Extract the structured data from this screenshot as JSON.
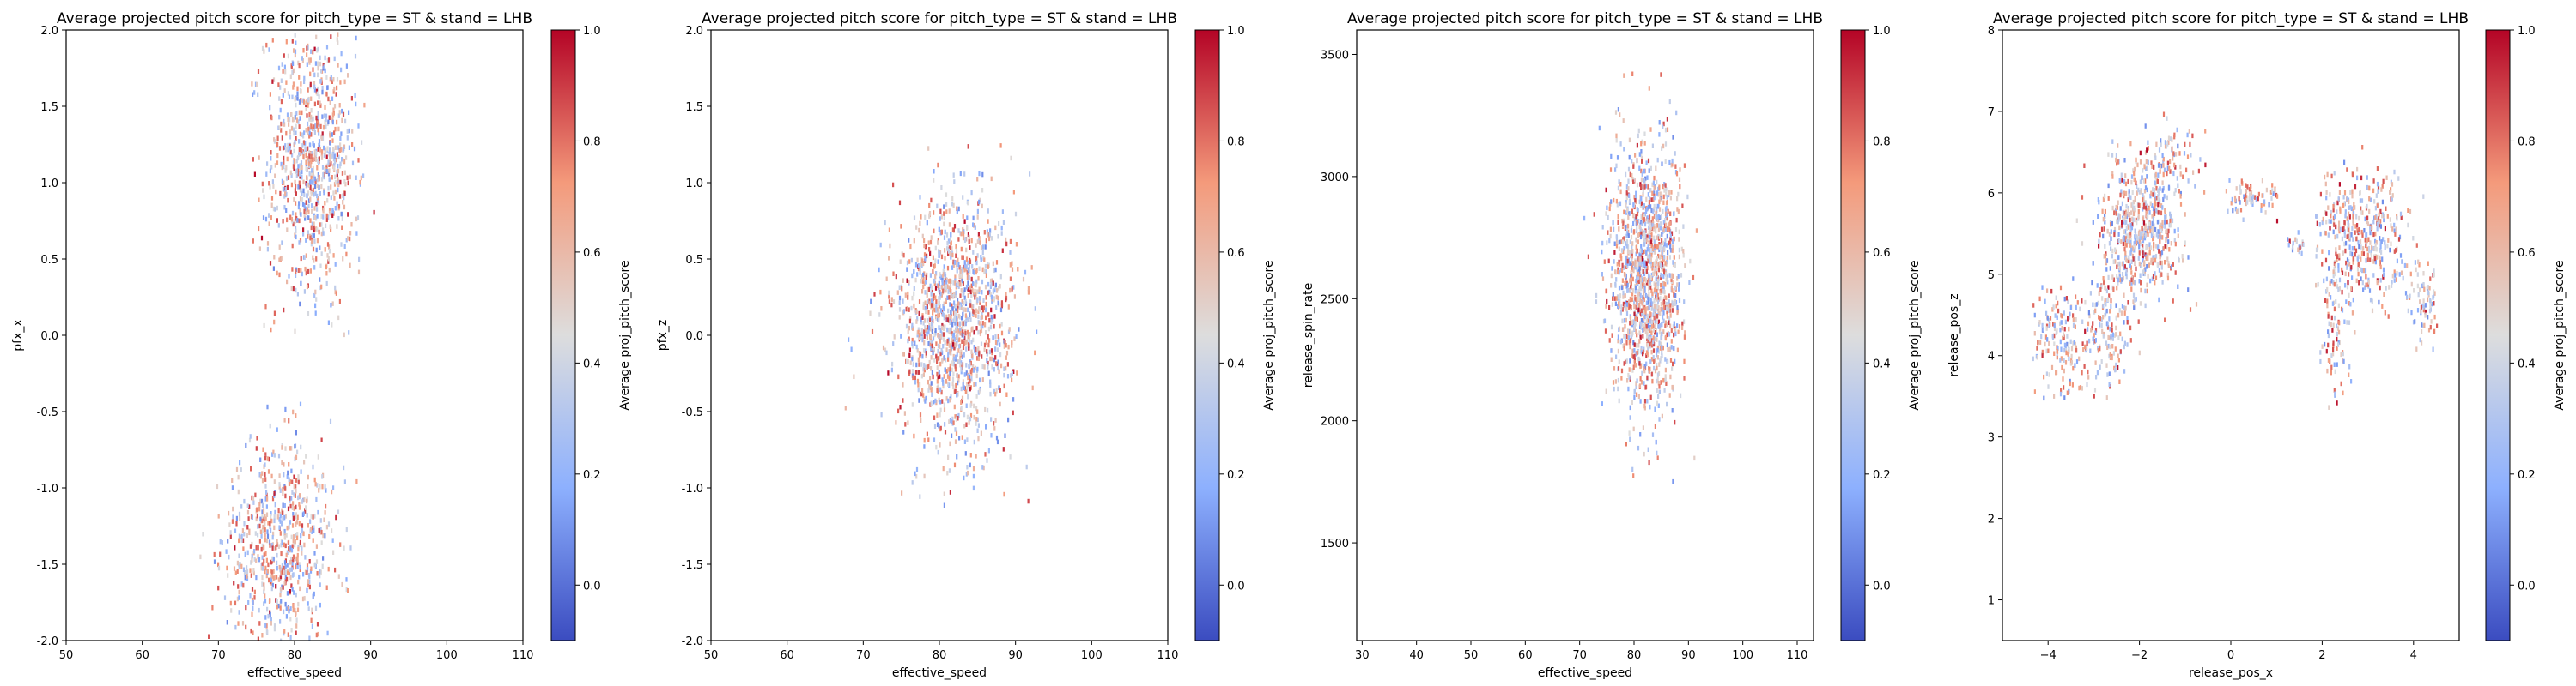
{
  "chart_data": [
    {
      "type": "heatmap",
      "title": "Average projected pitch score for pitch_type = ST & stand = LHB",
      "xlabel": "effective_speed",
      "ylabel": "pfx_x",
      "xlim": [
        50,
        110
      ],
      "ylim": [
        -2.0,
        2.0
      ],
      "xticks": [
        "50",
        "60",
        "70",
        "80",
        "90",
        "100",
        "110"
      ],
      "yticks": [
        "-2.0",
        "-1.5",
        "-1.0",
        "-0.5",
        "0.0",
        "0.5",
        "1.0",
        "1.5",
        "2.0"
      ],
      "colorbar": {
        "label": "Average proj_pitch_score",
        "ticks": [
          "0.0",
          "0.2",
          "0.4",
          "0.6",
          "0.8",
          "1.0"
        ],
        "range": [
          -0.1,
          1.0
        ],
        "colormap": "coolwarm"
      },
      "clusters": [
        {
          "x": 82,
          "y": 1.15,
          "sx": 3.0,
          "sy": 0.45,
          "n": 900,
          "xmin": 70,
          "xmax": 92,
          "ymin": 0.0,
          "ymax": 2.0
        },
        {
          "x": 78,
          "y": -1.35,
          "sx": 3.5,
          "sy": 0.35,
          "n": 700,
          "xmin": 62,
          "xmax": 92,
          "ymin": -2.0,
          "ymax": -0.4
        }
      ]
    },
    {
      "type": "heatmap",
      "title": "Average projected pitch score for pitch_type = ST & stand = LHB",
      "xlabel": "effective_speed",
      "ylabel": "pfx_z",
      "xlim": [
        50,
        110
      ],
      "ylim": [
        -2.0,
        2.0
      ],
      "xticks": [
        "50",
        "60",
        "70",
        "80",
        "90",
        "100",
        "110"
      ],
      "yticks": [
        "-2.0",
        "-1.5",
        "-1.0",
        "-0.5",
        "0.0",
        "0.5",
        "1.0",
        "1.5",
        "2.0"
      ],
      "colorbar": {
        "label": "Average proj_pitch_score",
        "ticks": [
          "0.0",
          "0.2",
          "0.4",
          "0.6",
          "0.8",
          "1.0"
        ],
        "range": [
          -0.1,
          1.0
        ],
        "colormap": "coolwarm"
      },
      "clusters": [
        {
          "x": 82,
          "y": 0.1,
          "sx": 4.0,
          "sy": 0.38,
          "n": 1400,
          "xmin": 63,
          "xmax": 93,
          "ymin": -1.2,
          "ymax": 1.5
        }
      ]
    },
    {
      "type": "heatmap",
      "title": "Average projected pitch score for pitch_type = ST & stand = LHB",
      "xlabel": "effective_speed",
      "ylabel": "release_spin_rate",
      "xlim": [
        29,
        113
      ],
      "ylim": [
        1100,
        3600
      ],
      "xticks": [
        "30",
        "40",
        "50",
        "60",
        "70",
        "80",
        "90",
        "100",
        "110"
      ],
      "yticks": [
        "1500",
        "2000",
        "2500",
        "3000",
        "3500"
      ],
      "colorbar": {
        "label": "Average proj_pitch_score",
        "ticks": [
          "0.0",
          "0.2",
          "0.4",
          "0.6",
          "0.8",
          "1.0"
        ],
        "range": [
          -0.1,
          1.0
        ],
        "colormap": "coolwarm"
      },
      "clusters": [
        {
          "x": 82,
          "y": 2600,
          "sx": 3.3,
          "sy": 260,
          "n": 1400,
          "xmin": 63,
          "xmax": 92,
          "ymin": 1200,
          "ymax": 3450
        }
      ]
    },
    {
      "type": "heatmap",
      "title": "Average projected pitch score for pitch_type = ST & stand = LHB",
      "xlabel": "release_pos_x",
      "ylabel": "release_pos_z",
      "xlim": [
        -5,
        5
      ],
      "ylim": [
        0.5,
        8.0
      ],
      "xticks": [
        "−4",
        "−2",
        "0",
        "2",
        "4"
      ],
      "yticks": [
        "1",
        "2",
        "3",
        "4",
        "5",
        "6",
        "7",
        "8"
      ],
      "colorbar": {
        "label": "Average proj_pitch_score",
        "ticks": [
          "0.0",
          "0.2",
          "0.4",
          "0.6",
          "0.8",
          "1.0"
        ],
        "range": [
          -0.1,
          1.0
        ],
        "colormap": "coolwarm"
      },
      "clusters": [
        {
          "x": -2.0,
          "y": 5.6,
          "sx": 0.45,
          "sy": 0.4,
          "n": 600,
          "xmin": -4.5,
          "xmax": 0.6,
          "ymin": 3.5,
          "ymax": 7.0
        },
        {
          "x": -3.7,
          "y": 4.2,
          "sx": 0.35,
          "sy": 0.35,
          "n": 180,
          "xmin": -4.5,
          "xmax": -2.5,
          "ymin": 3.5,
          "ymax": 5.0
        },
        {
          "x": -2.7,
          "y": 4.4,
          "sx": 0.3,
          "sy": 0.4,
          "n": 160,
          "xmin": -3.5,
          "xmax": -2.0,
          "ymin": 3.5,
          "ymax": 5.2
        },
        {
          "x": -1.4,
          "y": 6.5,
          "sx": 0.35,
          "sy": 0.25,
          "n": 80,
          "xmin": -2.0,
          "xmax": -0.5,
          "ymin": 6.0,
          "ymax": 7.0
        },
        {
          "x": 0.4,
          "y": 5.95,
          "sx": 0.3,
          "sy": 0.12,
          "n": 80,
          "xmin": -0.2,
          "xmax": 1.0,
          "ymin": 5.6,
          "ymax": 6.3
        },
        {
          "x": 1.4,
          "y": 5.4,
          "sx": 0.1,
          "sy": 0.08,
          "n": 20,
          "xmin": 1.2,
          "xmax": 1.6,
          "ymin": 5.2,
          "ymax": 5.6
        },
        {
          "x": 2.8,
          "y": 5.5,
          "sx": 0.55,
          "sy": 0.4,
          "n": 450,
          "xmin": 1.8,
          "xmax": 4.2,
          "ymin": 4.5,
          "ymax": 6.6
        },
        {
          "x": 2.3,
          "y": 4.3,
          "sx": 0.2,
          "sy": 0.45,
          "n": 90,
          "xmin": 1.9,
          "xmax": 2.7,
          "ymin": 3.1,
          "ymax": 5.0
        },
        {
          "x": 4.2,
          "y": 4.6,
          "sx": 0.2,
          "sy": 0.25,
          "n": 80,
          "xmin": 3.8,
          "xmax": 4.5,
          "ymin": 4.1,
          "ymax": 5.2
        }
      ]
    }
  ]
}
